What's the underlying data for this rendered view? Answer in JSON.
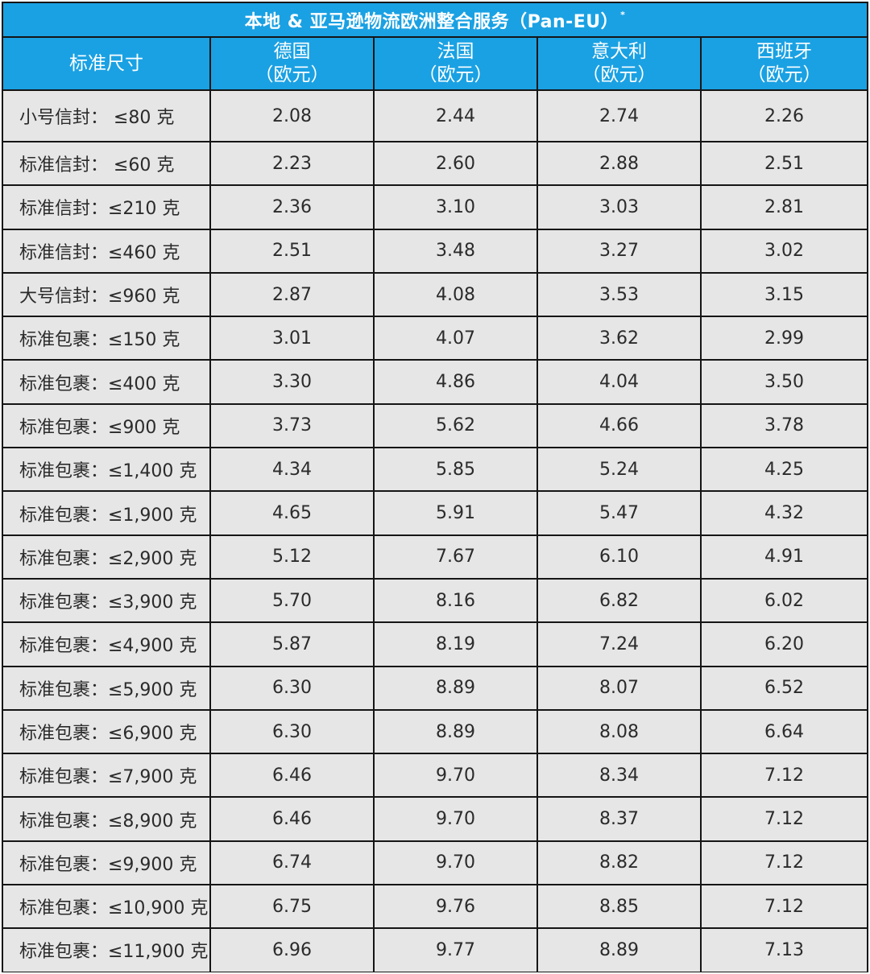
{
  "title": "本地 & 亚马逊物流欧洲整合服务（Pan-EU）",
  "title_mark": "*",
  "colors": {
    "header_bg": "#1aa1e3",
    "cell_bg": "#e6e6e6",
    "grid": "#151515"
  },
  "headers": [
    {
      "line1": "标准尺寸",
      "line2": ""
    },
    {
      "line1": "德国",
      "line2": "（欧元）"
    },
    {
      "line1": "法国",
      "line2": "（欧元）"
    },
    {
      "line1": "意大利",
      "line2": "（欧元）"
    },
    {
      "line1": "西班牙",
      "line2": "（欧元）"
    }
  ],
  "rows": [
    {
      "label": "小号信封： ≤80 克",
      "values": [
        "2.08",
        "2.44",
        "2.74",
        "2.26"
      ]
    },
    {
      "label": "标准信封： ≤60 克",
      "values": [
        "2.23",
        "2.60",
        "2.88",
        "2.51"
      ]
    },
    {
      "label": "标准信封：≤210 克",
      "values": [
        "2.36",
        "3.10",
        "3.03",
        "2.81"
      ]
    },
    {
      "label": "标准信封：≤460 克",
      "values": [
        "2.51",
        "3.48",
        "3.27",
        "3.02"
      ]
    },
    {
      "label": "大号信封：≤960 克",
      "values": [
        "2.87",
        "4.08",
        "3.53",
        "3.15"
      ]
    },
    {
      "label": "标准包裹：≤150 克",
      "values": [
        "3.01",
        "4.07",
        "3.62",
        "2.99"
      ]
    },
    {
      "label": "标准包裹：≤400 克",
      "values": [
        "3.30",
        "4.86",
        "4.04",
        "3.50"
      ]
    },
    {
      "label": "标准包裹：≤900 克",
      "values": [
        "3.73",
        "5.62",
        "4.66",
        "3.78"
      ]
    },
    {
      "label": "标准包裹：≤1,400 克",
      "values": [
        "4.34",
        "5.85",
        "5.24",
        "4.25"
      ]
    },
    {
      "label": "标准包裹：≤1,900 克",
      "values": [
        "4.65",
        "5.91",
        "5.47",
        "4.32"
      ]
    },
    {
      "label": "标准包裹：≤2,900 克",
      "values": [
        "5.12",
        "7.67",
        "6.10",
        "4.91"
      ]
    },
    {
      "label": "标准包裹：≤3,900 克",
      "values": [
        "5.70",
        "8.16",
        "6.82",
        "6.02"
      ]
    },
    {
      "label": "标准包裹：≤4,900 克",
      "values": [
        "5.87",
        "8.19",
        "7.24",
        "6.20"
      ]
    },
    {
      "label": "标准包裹：≤5,900 克",
      "values": [
        "6.30",
        "8.89",
        "8.07",
        "6.52"
      ]
    },
    {
      "label": "标准包裹：≤6,900 克",
      "values": [
        "6.30",
        "8.89",
        "8.08",
        "6.64"
      ]
    },
    {
      "label": "标准包裹：≤7,900 克",
      "values": [
        "6.46",
        "9.70",
        "8.34",
        "7.12"
      ]
    },
    {
      "label": "标准包裹：≤8,900 克",
      "values": [
        "6.46",
        "9.70",
        "8.37",
        "7.12"
      ]
    },
    {
      "label": "标准包裹：≤9,900 克",
      "values": [
        "6.74",
        "9.70",
        "8.82",
        "7.12"
      ]
    },
    {
      "label": "标准包裹：≤10,900 克",
      "values": [
        "6.75",
        "9.76",
        "8.85",
        "7.12"
      ]
    },
    {
      "label": "标准包裹：≤11,900 克",
      "values": [
        "6.96",
        "9.77",
        "8.89",
        "7.13"
      ]
    }
  ]
}
